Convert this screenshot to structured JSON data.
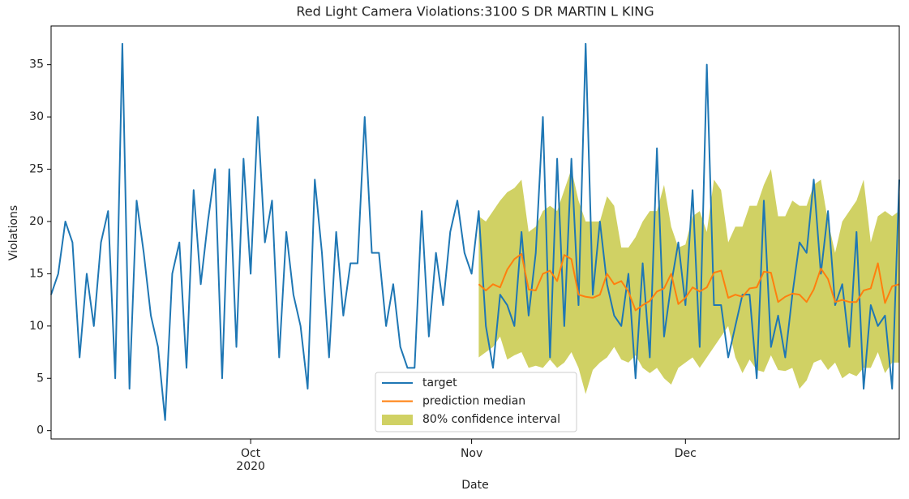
{
  "chart_data": {
    "type": "line",
    "title": "Red Light Camera Violations:3100 S DR MARTIN L KING",
    "x_label": "Date",
    "y_label": "Violations",
    "x": [
      0,
      1,
      2,
      3,
      4,
      5,
      6,
      7,
      8,
      9,
      10,
      11,
      12,
      13,
      14,
      15,
      16,
      17,
      18,
      19,
      20,
      21,
      22,
      23,
      24,
      25,
      26,
      27,
      28,
      29,
      30,
      31,
      32,
      33,
      34,
      35,
      36,
      37,
      38,
      39,
      40,
      41,
      42,
      43,
      44,
      45,
      46,
      47,
      48,
      49,
      50,
      51,
      52,
      53,
      54,
      55,
      56,
      57,
      58,
      59,
      60,
      61,
      62,
      63,
      64,
      65,
      66,
      67,
      68,
      69,
      70,
      71,
      72,
      73,
      74,
      75,
      76,
      77,
      78,
      79,
      80,
      81,
      82,
      83,
      84,
      85,
      86,
      87,
      88,
      89,
      90,
      91,
      92,
      93,
      94,
      95,
      96,
      97,
      98,
      99,
      100,
      101,
      102,
      103,
      104,
      105,
      106,
      107,
      108,
      109,
      110,
      111,
      112,
      113,
      114,
      115,
      116,
      117,
      118,
      119
    ],
    "xlim": [
      0,
      119
    ],
    "xticks": [
      {
        "value": 28,
        "label": "Oct\n2020"
      },
      {
        "value": 59,
        "label": "Nov"
      },
      {
        "value": 89,
        "label": "Dec"
      }
    ],
    "ylim": [
      -0.8,
      38.7
    ],
    "yticks": [
      0,
      5,
      10,
      15,
      20,
      25,
      30,
      35
    ],
    "grid": false,
    "legend": "lower center",
    "series": [
      {
        "name": "target",
        "color": "#1f77b4",
        "values": [
          13,
          15,
          20,
          18,
          7,
          15,
          10,
          18,
          21,
          5,
          37,
          4,
          22,
          17,
          11,
          8,
          1,
          15,
          18,
          6,
          23,
          14,
          20,
          25,
          5,
          25,
          8,
          26,
          15,
          30,
          18,
          22,
          7,
          19,
          13,
          10,
          4,
          24,
          17,
          7,
          19,
          11,
          16,
          16,
          30,
          17,
          17,
          10,
          14,
          8,
          6,
          6,
          21,
          9,
          17,
          12,
          19,
          22,
          17,
          15,
          21,
          10,
          6,
          13,
          12,
          10,
          19,
          11,
          17,
          30,
          7,
          26,
          10,
          26,
          12,
          37,
          13,
          20,
          14,
          11,
          10,
          15,
          5,
          16,
          7,
          27,
          9,
          14,
          18,
          12,
          23,
          8,
          35,
          12,
          12,
          7,
          10,
          13,
          13,
          5,
          22,
          8,
          11,
          7,
          13,
          18,
          17,
          24,
          15,
          21,
          12,
          14,
          8,
          19,
          4,
          12,
          10,
          11,
          4,
          24
        ]
      },
      {
        "name": "prediction median",
        "color": "#ff7f0e",
        "values": [
          null,
          null,
          null,
          null,
          null,
          null,
          null,
          null,
          null,
          null,
          null,
          null,
          null,
          null,
          null,
          null,
          null,
          null,
          null,
          null,
          null,
          null,
          null,
          null,
          null,
          null,
          null,
          null,
          null,
          null,
          null,
          null,
          null,
          null,
          null,
          null,
          null,
          null,
          null,
          null,
          null,
          null,
          null,
          null,
          null,
          null,
          null,
          null,
          null,
          null,
          null,
          null,
          null,
          null,
          null,
          null,
          null,
          null,
          null,
          null,
          14,
          13.4,
          14,
          13.7,
          15.4,
          16.4,
          16.9,
          13.5,
          13.4,
          15,
          15.3,
          14.3,
          16.8,
          16.4,
          13,
          12.8,
          12.7,
          13,
          15,
          14,
          14.3,
          13.3,
          11.5,
          12,
          12.4,
          13.3,
          13.6,
          15,
          12.1,
          12.7,
          13.7,
          13.3,
          13.7,
          15.1,
          15.3,
          12.7,
          13,
          12.8,
          13.6,
          13.7,
          15.2,
          15.1,
          12.3,
          12.8,
          13.1,
          13,
          12.3,
          13.5,
          15.5,
          14.5,
          12.3,
          12.5,
          12.3,
          12.3,
          13.4,
          13.6,
          16,
          12.2,
          13.8,
          14
        ]
      },
      {
        "name": "80% confidence interval",
        "type": "band",
        "color": "#bcbd22",
        "upper": [
          null,
          null,
          null,
          null,
          null,
          null,
          null,
          null,
          null,
          null,
          null,
          null,
          null,
          null,
          null,
          null,
          null,
          null,
          null,
          null,
          null,
          null,
          null,
          null,
          null,
          null,
          null,
          null,
          null,
          null,
          null,
          null,
          null,
          null,
          null,
          null,
          null,
          null,
          null,
          null,
          null,
          null,
          null,
          null,
          null,
          null,
          null,
          null,
          null,
          null,
          null,
          null,
          null,
          null,
          null,
          null,
          null,
          null,
          null,
          null,
          20.5,
          20,
          21,
          22,
          22.8,
          23.2,
          24,
          19,
          19.5,
          21,
          21.5,
          21,
          23,
          25,
          22,
          20,
          20,
          20,
          22.4,
          21.5,
          17.5,
          17.5,
          18.5,
          20,
          21,
          21,
          23.5,
          19.5,
          17.5,
          17.8,
          20.5,
          21,
          19,
          24,
          23,
          18,
          19.5,
          19.5,
          21.5,
          21.5,
          23.5,
          25,
          20.5,
          20.5,
          22,
          21.5,
          21.5,
          23.5,
          24,
          20,
          17,
          20,
          21,
          22,
          24,
          18,
          20.5,
          21,
          20.5,
          21
        ],
        "lower": [
          null,
          null,
          null,
          null,
          null,
          null,
          null,
          null,
          null,
          null,
          null,
          null,
          null,
          null,
          null,
          null,
          null,
          null,
          null,
          null,
          null,
          null,
          null,
          null,
          null,
          null,
          null,
          null,
          null,
          null,
          null,
          null,
          null,
          null,
          null,
          null,
          null,
          null,
          null,
          null,
          null,
          null,
          null,
          null,
          null,
          null,
          null,
          null,
          null,
          null,
          null,
          null,
          null,
          null,
          null,
          null,
          null,
          null,
          null,
          null,
          7,
          7.5,
          8,
          9,
          6.8,
          7.2,
          7.5,
          6,
          6.2,
          6,
          6.8,
          6,
          6.5,
          7.5,
          6,
          3.5,
          5.8,
          6.5,
          7,
          8,
          6.8,
          6.5,
          7.2,
          6,
          5.5,
          6,
          5,
          4.4,
          6,
          6.5,
          7,
          6,
          7,
          8,
          9,
          10,
          7,
          5.5,
          6.8,
          5.8,
          5.6,
          7.2,
          5.8,
          5.7,
          6,
          4,
          4.8,
          6.5,
          6.8,
          5.8,
          6.5,
          5,
          5.5,
          5.2,
          6,
          6,
          7.5,
          5.5,
          6.5,
          6.5
        ]
      }
    ]
  }
}
